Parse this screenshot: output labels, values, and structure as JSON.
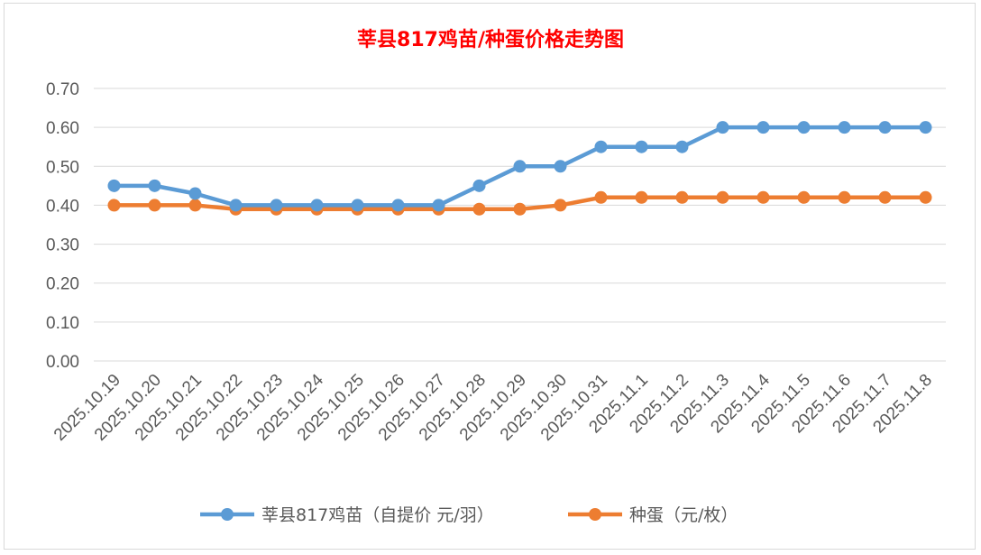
{
  "chart_data": {
    "type": "line",
    "title": "莘县817鸡苗/种蛋价格走势图",
    "title_color": "#ff0000",
    "xlabel": "",
    "ylabel": "",
    "ylim": [
      0,
      0.7
    ],
    "yticks": [
      "0.00",
      "0.10",
      "0.20",
      "0.30",
      "0.40",
      "0.50",
      "0.60",
      "0.70"
    ],
    "grid": true,
    "legend_position": "bottom",
    "categories": [
      "2025.10.19",
      "2025.10.20",
      "2025.10.21",
      "2025.10.22",
      "2025.10.23",
      "2025.10.24",
      "2025.10.25",
      "2025.10.26",
      "2025.10.27",
      "2025.10.28",
      "2025.10.29",
      "2025.10.30",
      "2025.10.31",
      "2025.11.1",
      "2025.11.2",
      "2025.11.3",
      "2025.11.4",
      "2025.11.5",
      "2025.11.6",
      "2025.11.7",
      "2025.11.8"
    ],
    "series": [
      {
        "name": "莘县817鸡苗（自提价 元/羽）",
        "color": "#5b9bd5",
        "values": [
          0.45,
          0.45,
          0.43,
          0.4,
          0.4,
          0.4,
          0.4,
          0.4,
          0.4,
          0.45,
          0.5,
          0.5,
          0.55,
          0.55,
          0.55,
          0.6,
          0.6,
          0.6,
          0.6,
          0.6,
          0.6
        ]
      },
      {
        "name": "种蛋（元/枚）",
        "color": "#ed7d31",
        "values": [
          0.4,
          0.4,
          0.4,
          0.39,
          0.39,
          0.39,
          0.39,
          0.39,
          0.39,
          0.39,
          0.39,
          0.4,
          0.42,
          0.42,
          0.42,
          0.42,
          0.42,
          0.42,
          0.42,
          0.42,
          0.42
        ]
      }
    ]
  }
}
